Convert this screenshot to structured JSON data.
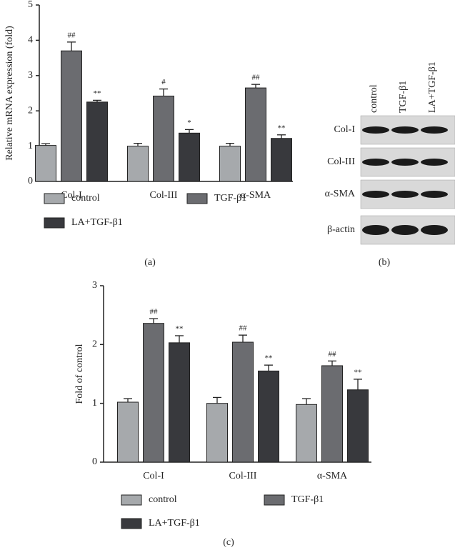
{
  "chart_data": [
    {
      "type": "bar",
      "label": "(a)",
      "ylabel": "Relative mRNA expression (fold)",
      "categories": [
        "Col-I",
        "Col-III",
        "α-SMA"
      ],
      "ylim": [
        0,
        5
      ],
      "yticks": [
        0,
        1,
        2,
        3,
        4,
        5
      ],
      "series": [
        {
          "name": "control",
          "color": "#a6a9ac",
          "values": [
            1.02,
            1.0,
            1.0
          ],
          "errors": [
            0.05,
            0.08,
            0.08
          ]
        },
        {
          "name": "TGF-β1",
          "color": "#6b6c70",
          "values": [
            3.7,
            2.42,
            2.65
          ],
          "errors": [
            0.25,
            0.2,
            0.1
          ],
          "annotations": [
            "##",
            "#",
            "##"
          ]
        },
        {
          "name": "LA+TGF-β1",
          "color": "#38393d",
          "values": [
            2.25,
            1.37,
            1.22
          ],
          "errors": [
            0.05,
            0.1,
            0.1
          ],
          "annotations": [
            "**",
            "*",
            "**"
          ]
        }
      ]
    },
    {
      "type": "bar",
      "label": "(c)",
      "ylabel": "Fold of control",
      "categories": [
        "Col-I",
        "Col-III",
        "α-SMA"
      ],
      "ylim": [
        0,
        3
      ],
      "yticks": [
        0,
        1,
        2,
        3
      ],
      "series": [
        {
          "name": "control",
          "color": "#a6a9ac",
          "values": [
            1.02,
            1.0,
            0.98
          ],
          "errors": [
            0.06,
            0.1,
            0.1
          ]
        },
        {
          "name": "TGF-β1",
          "color": "#6b6c70",
          "values": [
            2.36,
            2.04,
            1.64
          ],
          "errors": [
            0.08,
            0.12,
            0.08
          ],
          "annotations": [
            "##",
            "##",
            "##"
          ]
        },
        {
          "name": "LA+TGF-β1",
          "color": "#38393d",
          "values": [
            2.03,
            1.55,
            1.23
          ],
          "errors": [
            0.12,
            0.1,
            0.18
          ],
          "annotations": [
            "**",
            "**",
            "**"
          ]
        }
      ]
    }
  ],
  "blot": {
    "label": "(b)",
    "columns": [
      "control",
      "TGF-β1",
      "LA+TGF-β1"
    ],
    "rows": [
      "Col-I",
      "Col-III",
      "α-SMA",
      "β-actin"
    ]
  }
}
